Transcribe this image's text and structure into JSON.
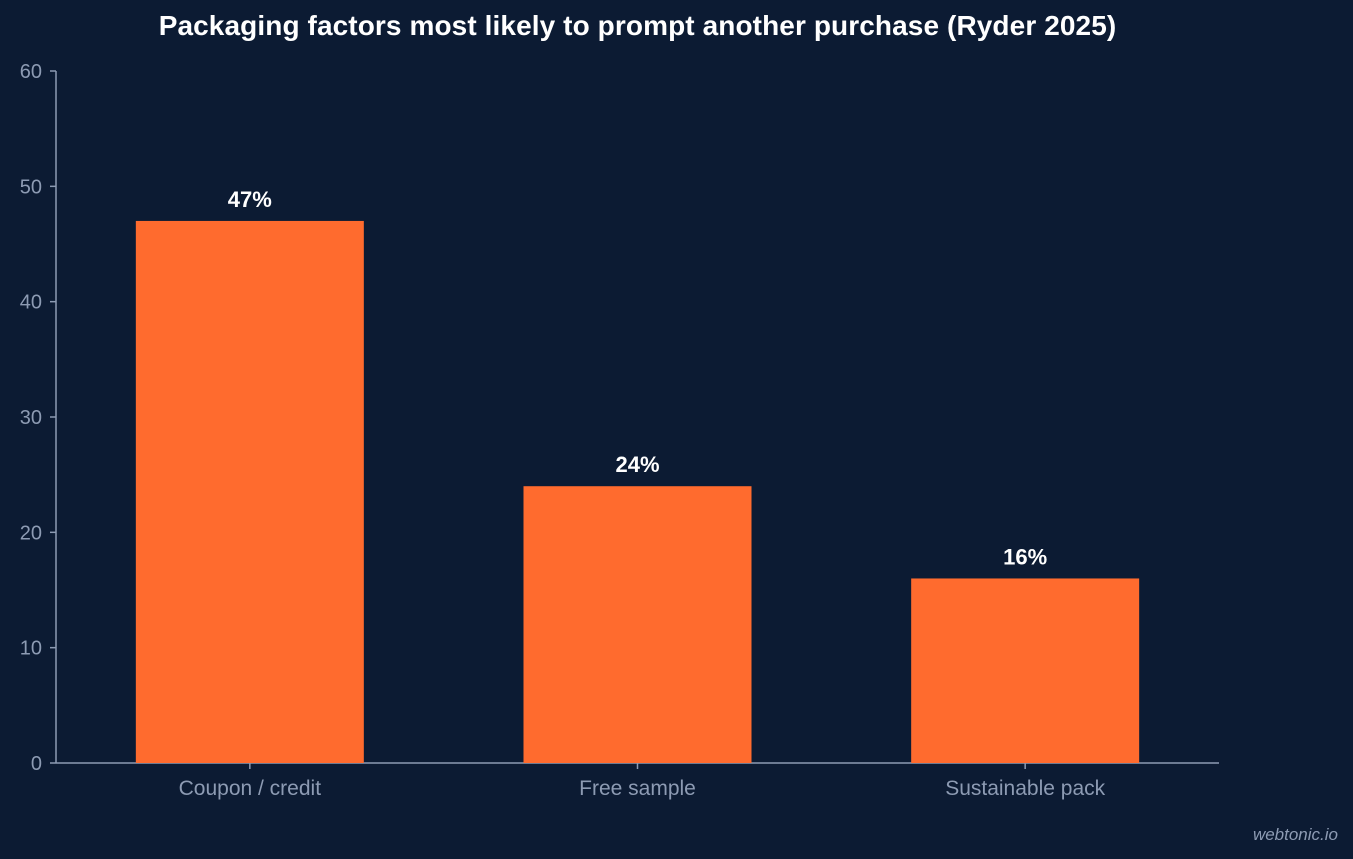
{
  "chart_data": {
    "type": "bar",
    "title": "Packaging factors most likely to prompt another purchase (Ryder 2025)",
    "xlabel": "",
    "ylabel": "",
    "categories": [
      "Coupon / credit",
      "Free sample",
      "Sustainable pack"
    ],
    "values": [
      47,
      24,
      16
    ],
    "value_labels": [
      "47%",
      "24%",
      "16%"
    ],
    "ylim": [
      0,
      60
    ],
    "yticks": [
      0,
      10,
      20,
      30,
      40,
      50,
      60
    ],
    "grid": false,
    "legend": "none",
    "bar_color": "#ff6b2e"
  },
  "colors": {
    "background": "#0c1b33",
    "bar": "#ff6b2e",
    "axis": "#8d9bb3",
    "title": "#ffffff",
    "value_label": "#ffffff"
  },
  "watermark": "webtonic.io"
}
